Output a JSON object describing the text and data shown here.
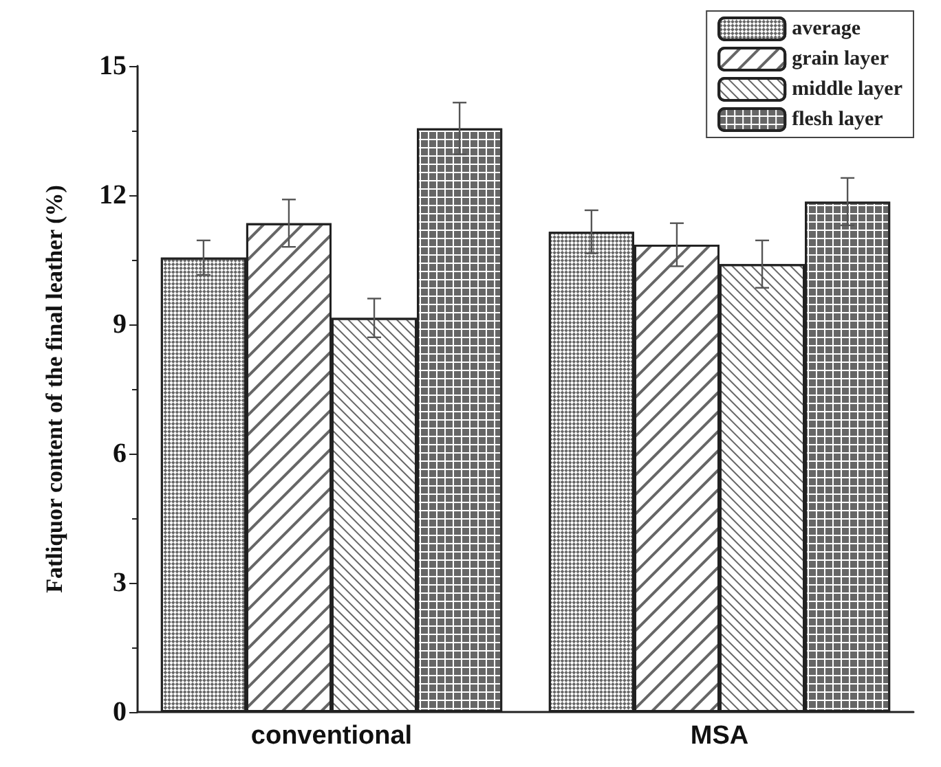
{
  "chart_data": {
    "type": "bar",
    "ylabel": "Fatliquor content of the final leather (%)",
    "categories": [
      "conventional",
      "MSA"
    ],
    "series": [
      {
        "name": "average",
        "color": "#ffffff",
        "values": [
          10.55,
          11.15
        ],
        "errors": [
          0.4,
          0.5
        ]
      },
      {
        "name": "grain layer",
        "color": "#ffffff",
        "values": [
          11.35,
          10.85
        ],
        "errors": [
          0.55,
          0.5
        ]
      },
      {
        "name": "middle layer",
        "color": "#ffffff",
        "values": [
          9.15,
          10.4
        ],
        "errors": [
          0.45,
          0.55
        ]
      },
      {
        "name": "flesh layer",
        "color": "#ffffff",
        "values": [
          13.55,
          11.85
        ],
        "errors": [
          0.6,
          0.55
        ]
      }
    ],
    "ylim": [
      0,
      15
    ],
    "yticks": [
      0,
      3,
      6,
      9,
      12,
      15
    ],
    "grid": false,
    "legend": "top right"
  }
}
